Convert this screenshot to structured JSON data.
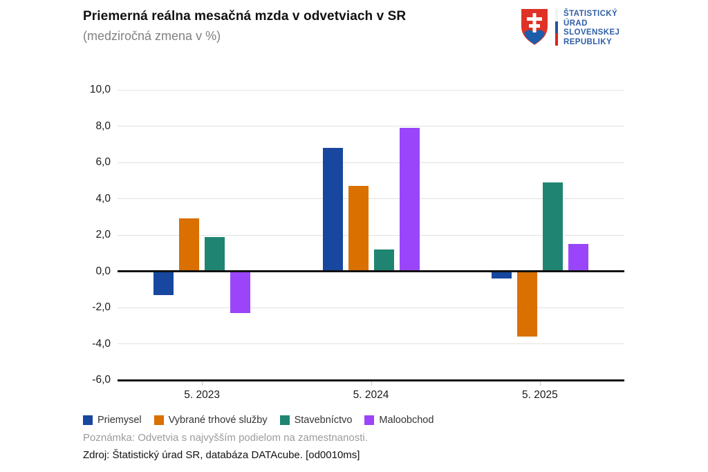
{
  "header": {
    "title": "Priemerná reálna mesačná mzda v odvetviach v SR",
    "subtitle": "(medziročná zmena v %)"
  },
  "logo": {
    "org_lines": [
      "ŠTATISTICKÝ",
      "ÚRAD",
      "SLOVENSKEJ",
      "REPUBLIKY"
    ],
    "text_color": "#2e5ea7",
    "shield_red": "#e03127",
    "shield_blue": "#1b5cab",
    "stripe_colors": [
      "#f2f2f2",
      "#2453a0",
      "#d5281e"
    ]
  },
  "chart_data": {
    "type": "bar",
    "title": "Priemerná reálna mesačná mzda v odvetviach v SR",
    "subtitle": "(medziročná zmena v %)",
    "categories": [
      "5. 2023",
      "5. 2024",
      "5. 2025"
    ],
    "series": [
      {
        "name": "Priemysel",
        "color": "#17479e",
        "values": [
          -1.3,
          6.8,
          -0.4
        ]
      },
      {
        "name": "Vybrané trhové služby",
        "color": "#d97000",
        "values": [
          2.9,
          4.7,
          -3.6
        ]
      },
      {
        "name": "Stavebníctvo",
        "color": "#1f8572",
        "values": [
          1.9,
          1.2,
          4.9
        ]
      },
      {
        "name": "Maloobchod",
        "color": "#9b45fa",
        "values": [
          -2.3,
          7.9,
          1.5
        ]
      }
    ],
    "xlabel": "",
    "ylabel": "",
    "ylim": [
      -6,
      10
    ],
    "ytick_step": 2,
    "ytick_labels": [
      "10,0",
      "8,0",
      "6,0",
      "4,0",
      "2,0",
      "0,0",
      "-2,0",
      "-4,0",
      "-6,0"
    ],
    "grid": true,
    "legend_position": "bottom"
  },
  "footer": {
    "note": "Poznámka: Odvetvia s najvyšším podielom na zamestnanosti.",
    "source": "Zdroj: Štatistický úrad SR, databáza DATAcube. [od0010ms]"
  }
}
